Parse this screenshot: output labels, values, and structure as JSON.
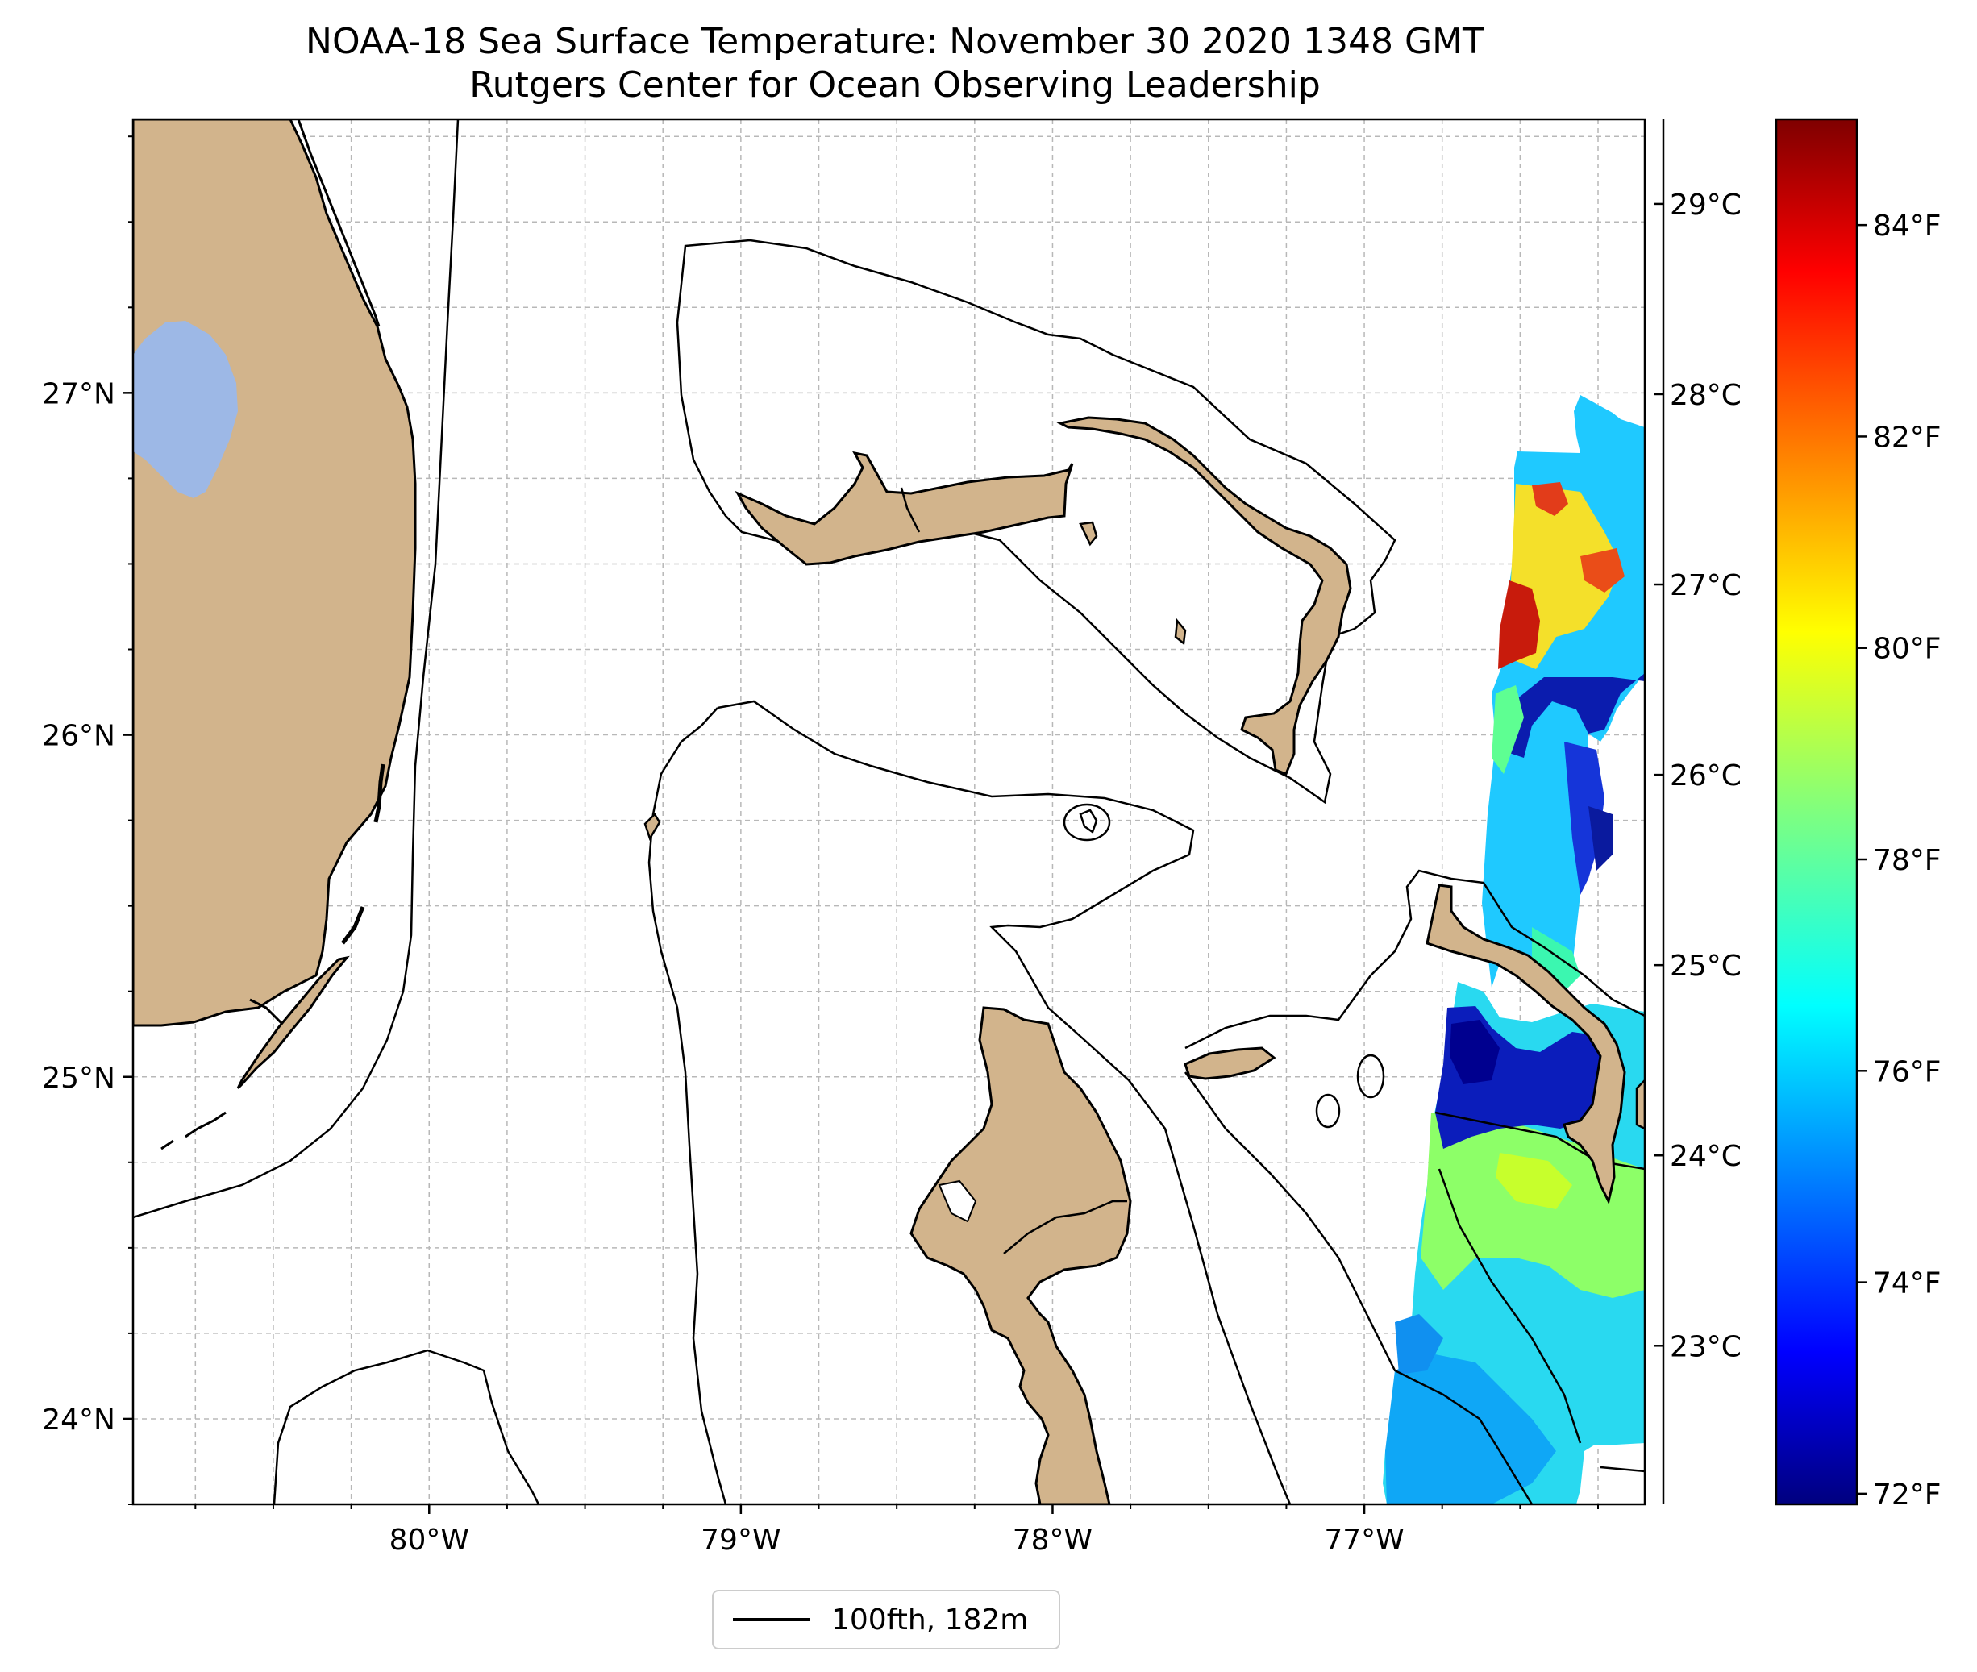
{
  "title_line1": "NOAA-18 Sea Surface Temperature: November 30 2020 1348 GMT",
  "title_line2": "Rutgers Center for Ocean Observing Leadership",
  "colors": {
    "land": "#d2b48c",
    "lake": "#9db8e6",
    "coastline": "#000000",
    "grid": "#b0b0b0"
  },
  "map": {
    "lon_range": [
      -80.95,
      -76.1
    ],
    "lat_range": [
      23.75,
      27.8
    ],
    "lon_ticks": [
      {
        "value": -80,
        "label": "80°W"
      },
      {
        "value": -79,
        "label": "79°W"
      },
      {
        "value": -78,
        "label": "78°W"
      },
      {
        "value": -77,
        "label": "77°W"
      }
    ],
    "lat_ticks": [
      {
        "value": 27,
        "label": "27°N"
      },
      {
        "value": 26,
        "label": "26°N"
      },
      {
        "value": 25,
        "label": "25°N"
      },
      {
        "value": 24,
        "label": "24°N"
      }
    ],
    "gridlines": "dashed"
  },
  "colorbar": {
    "colormap": "jet",
    "range_f": [
      71.9,
      85.0
    ],
    "fahrenheit_ticks": [
      "84°F",
      "82°F",
      "80°F",
      "78°F",
      "76°F",
      "74°F",
      "72°F"
    ],
    "celsius_ticks": [
      "29°C",
      "28°C",
      "27°C",
      "26°C",
      "25°C",
      "24°C",
      "23°C"
    ]
  },
  "legend": {
    "label": "100fth, 182m"
  }
}
